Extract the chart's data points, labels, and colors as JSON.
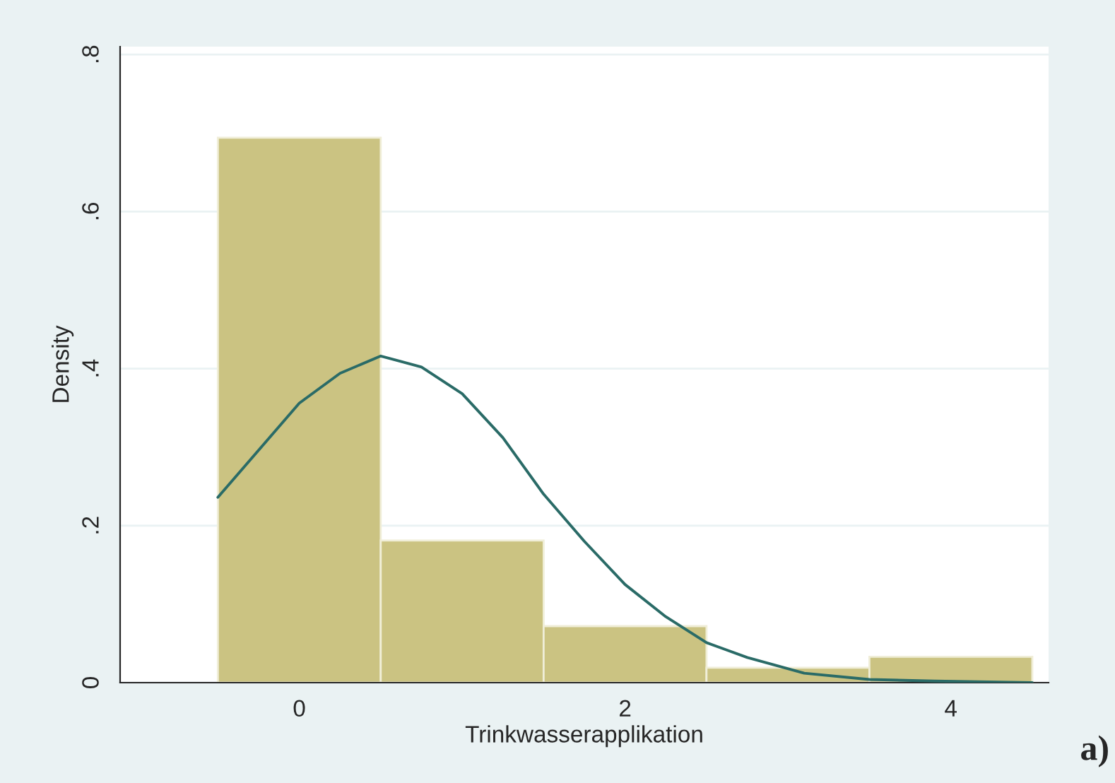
{
  "chart_data": {
    "type": "histogram",
    "xlabel": "Trinkwasserapplikation",
    "ylabel": "Density",
    "bins": [
      -0.5,
      0.5,
      1.5,
      2.5,
      3.5,
      4.5
    ],
    "values": [
      0.694,
      0.181,
      0.072,
      0.019,
      0.033
    ],
    "color": "#cbc382",
    "series": [
      {
        "type": "line",
        "color": "#2a6b67",
        "x": [
          -0.5,
          0.0,
          0.25,
          0.5,
          0.75,
          1.0,
          1.25,
          1.5,
          1.75,
          2.0,
          2.25,
          2.5,
          2.75,
          3.1,
          3.5,
          3.9,
          4.5
        ],
        "values": [
          0.236,
          0.356,
          0.394,
          0.416,
          0.402,
          0.368,
          0.312,
          0.24,
          0.18,
          0.125,
          0.084,
          0.051,
          0.032,
          0.012,
          0.004,
          0.002,
          0.0
        ]
      }
    ],
    "xlim": [
      -1.1,
      4.6
    ],
    "ylim": [
      0,
      0.81
    ],
    "xticks": [
      0,
      2,
      4
    ],
    "yticks": [
      0,
      {
        "value": 0.2,
        "label": ".2"
      },
      {
        "value": 0.4,
        "label": ".4"
      },
      {
        "value": 0.6,
        "label": ".6"
      },
      {
        "value": 0.8,
        "label": ".8"
      }
    ],
    "grid": "y",
    "annotations": [
      "a)"
    ]
  }
}
